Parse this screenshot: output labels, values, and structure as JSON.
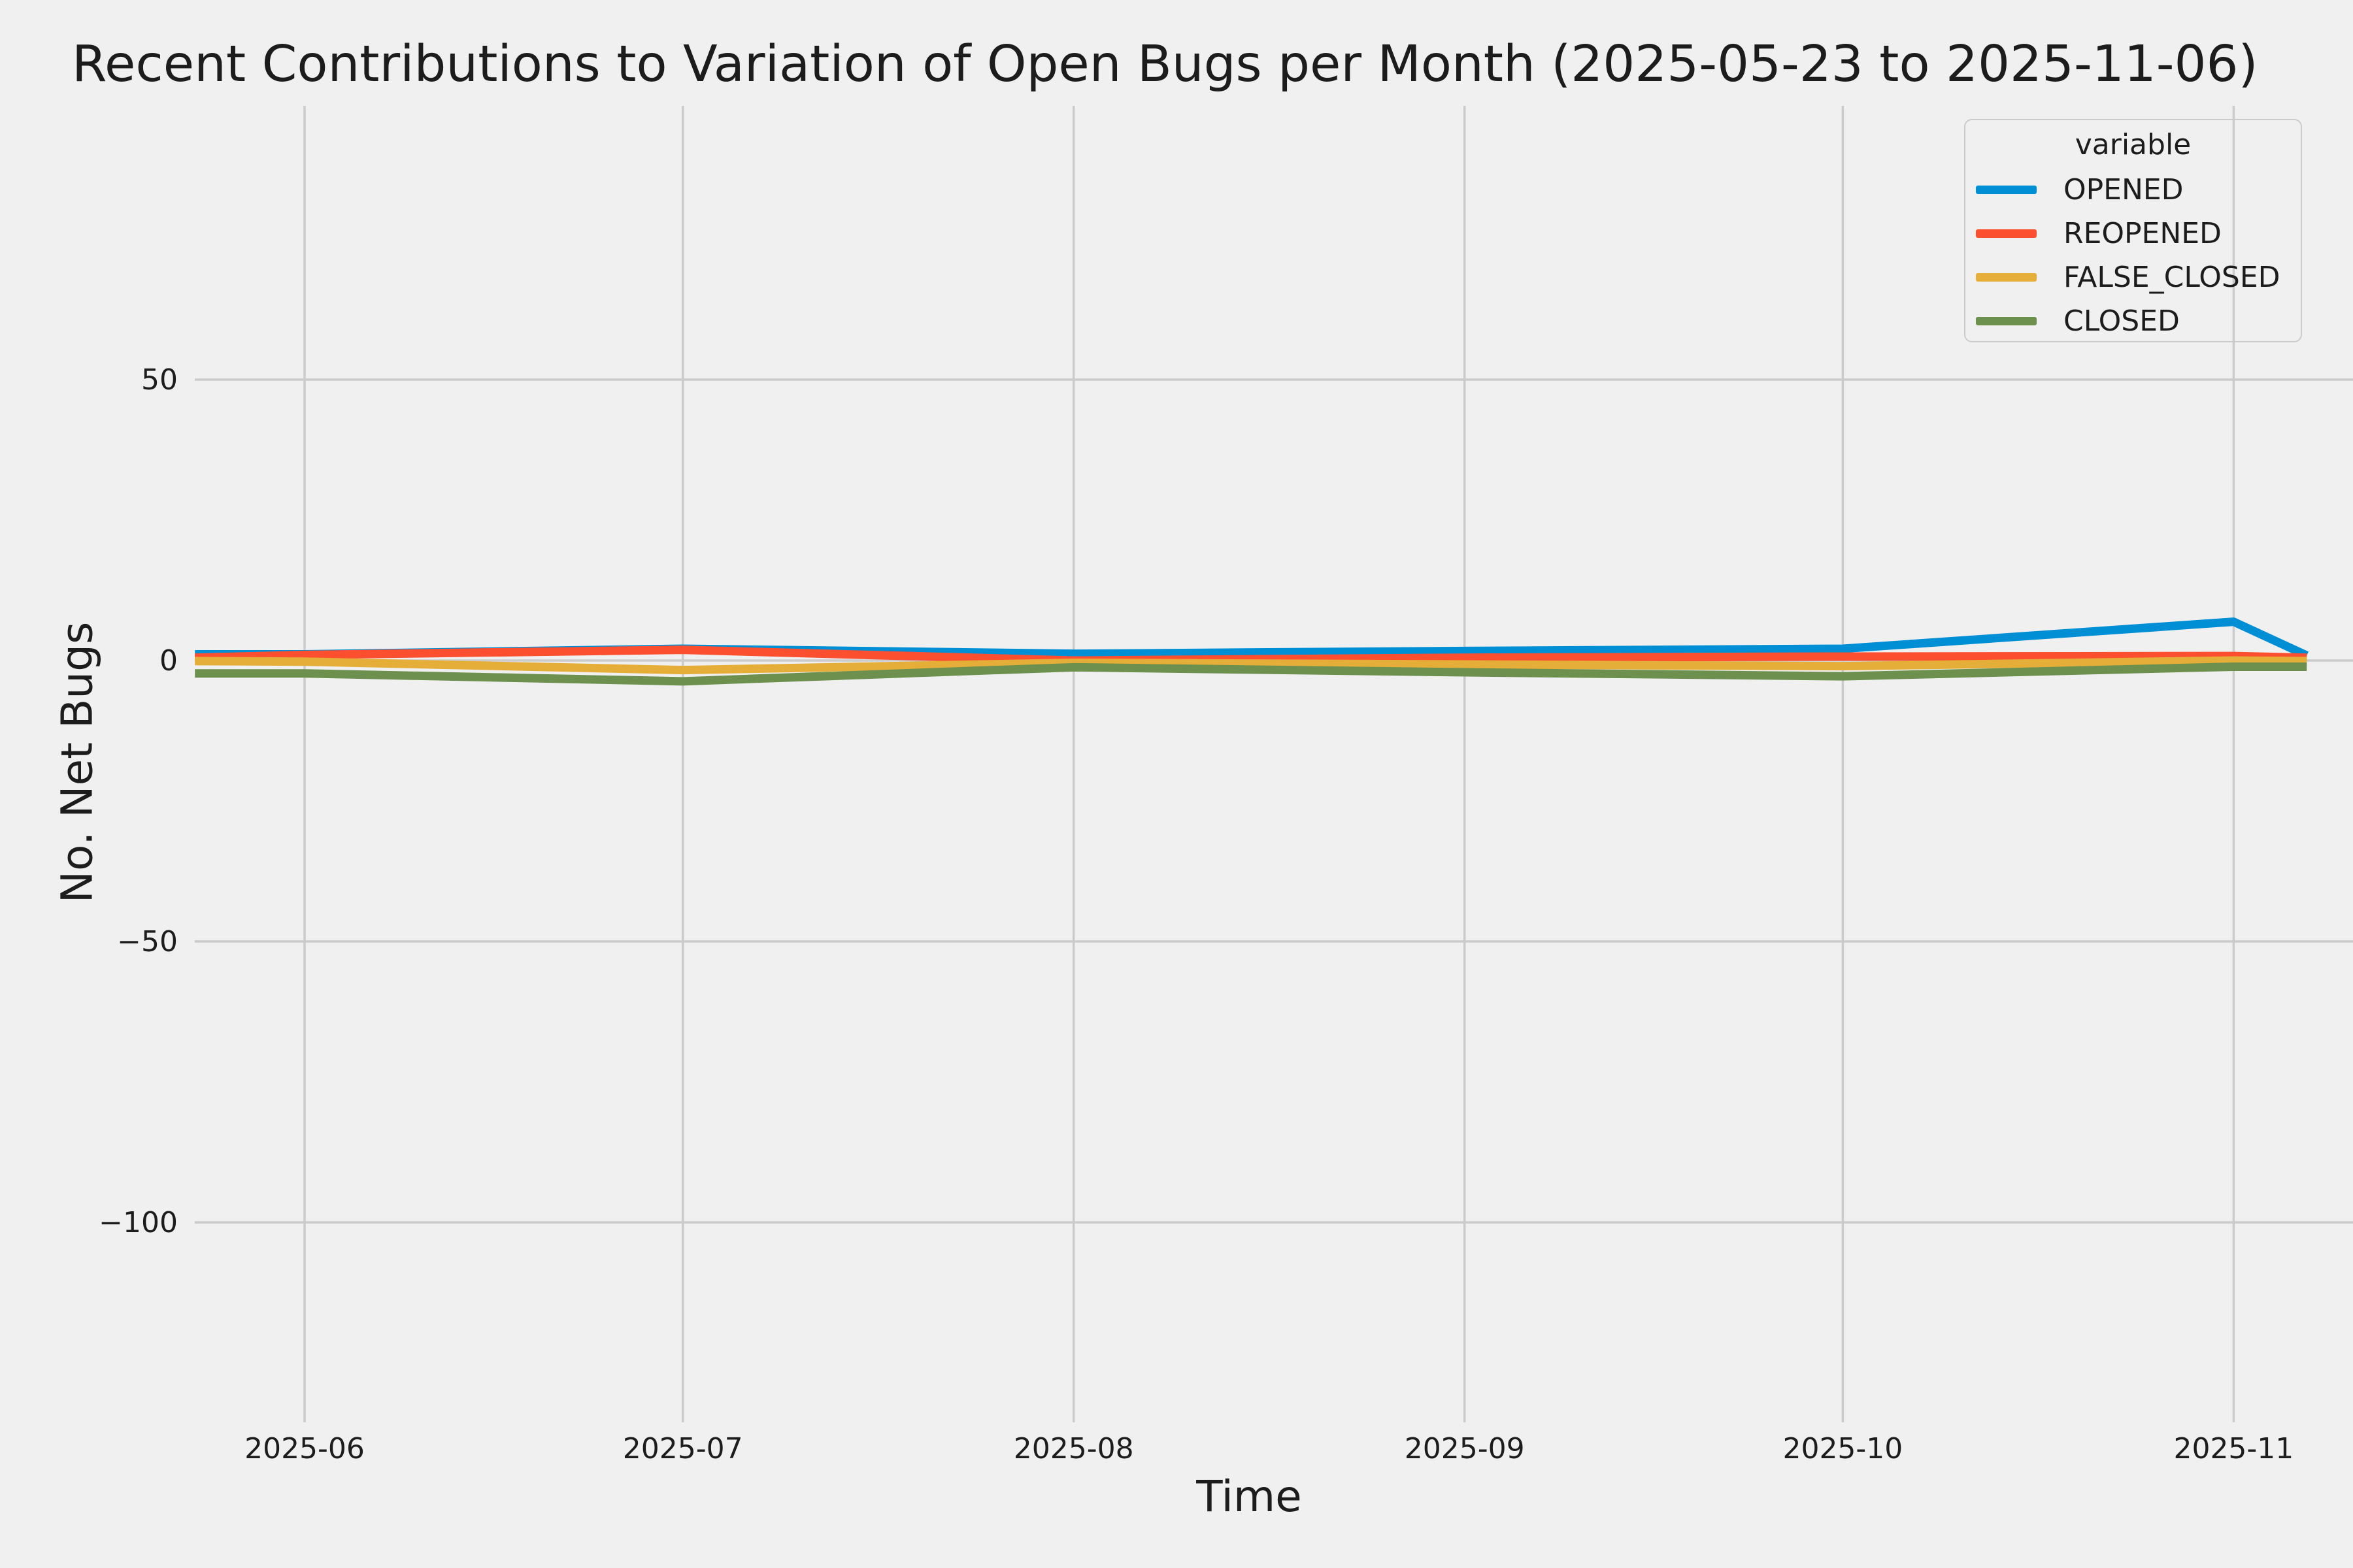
{
  "chart_data": {
    "type": "line",
    "title": "Recent Contributions to Variation of Open Bugs per Month (2025-05-23 to 2025-11-06)",
    "xlabel": "Time",
    "ylabel": "No. Net Bugs",
    "legend_title": "variable",
    "legend_position": "upper right",
    "grid": true,
    "background_color": "#f0f0f0",
    "grid_color": "#cbcbcb",
    "text_color": "#1c1c1c",
    "x": [
      "2025-05-23",
      "2025-06-01",
      "2025-07-01",
      "2025-08-01",
      "2025-09-01",
      "2025-10-01",
      "2025-11-01",
      "2025-11-06"
    ],
    "x_day_offsets": [
      0.3,
      9,
      39,
      70,
      101,
      131,
      162,
      167.8
    ],
    "x_ticks": [
      {
        "label": "2025-06",
        "day": 9
      },
      {
        "label": "2025-07",
        "day": 39
      },
      {
        "label": "2025-08",
        "day": 70
      },
      {
        "label": "2025-09",
        "day": 101
      },
      {
        "label": "2025-10",
        "day": 131
      },
      {
        "label": "2025-11",
        "day": 162
      }
    ],
    "y_ticks": [
      {
        "label": "50",
        "value": 50
      },
      {
        "label": "0",
        "value": 0
      },
      {
        "label": "−50",
        "value": -50
      },
      {
        "label": "−100",
        "value": -100
      }
    ],
    "ylim": [
      -135.6,
      98.7
    ],
    "series": [
      {
        "name": "OPENED",
        "color": "#008fd5",
        "values": [
          1.1,
          1.1,
          2.1,
          1.2,
          1.7,
          2.1,
          6.9,
          0.9
        ]
      },
      {
        "name": "REOPENED",
        "color": "#fc4f30",
        "values": [
          0.5,
          1.0,
          1.9,
          0.0,
          0.5,
          0.7,
          0.8,
          0.5
        ]
      },
      {
        "name": "FALSE_CLOSED",
        "color": "#e5ae38",
        "values": [
          -0.1,
          -0.2,
          -1.7,
          -0.4,
          -0.7,
          -1.0,
          0.0,
          -0.1
        ]
      },
      {
        "name": "CLOSED",
        "color": "#6d904f",
        "values": [
          -2.3,
          -2.3,
          -3.7,
          -1.2,
          -2.1,
          -2.8,
          -1.1,
          -1.1
        ]
      }
    ]
  }
}
